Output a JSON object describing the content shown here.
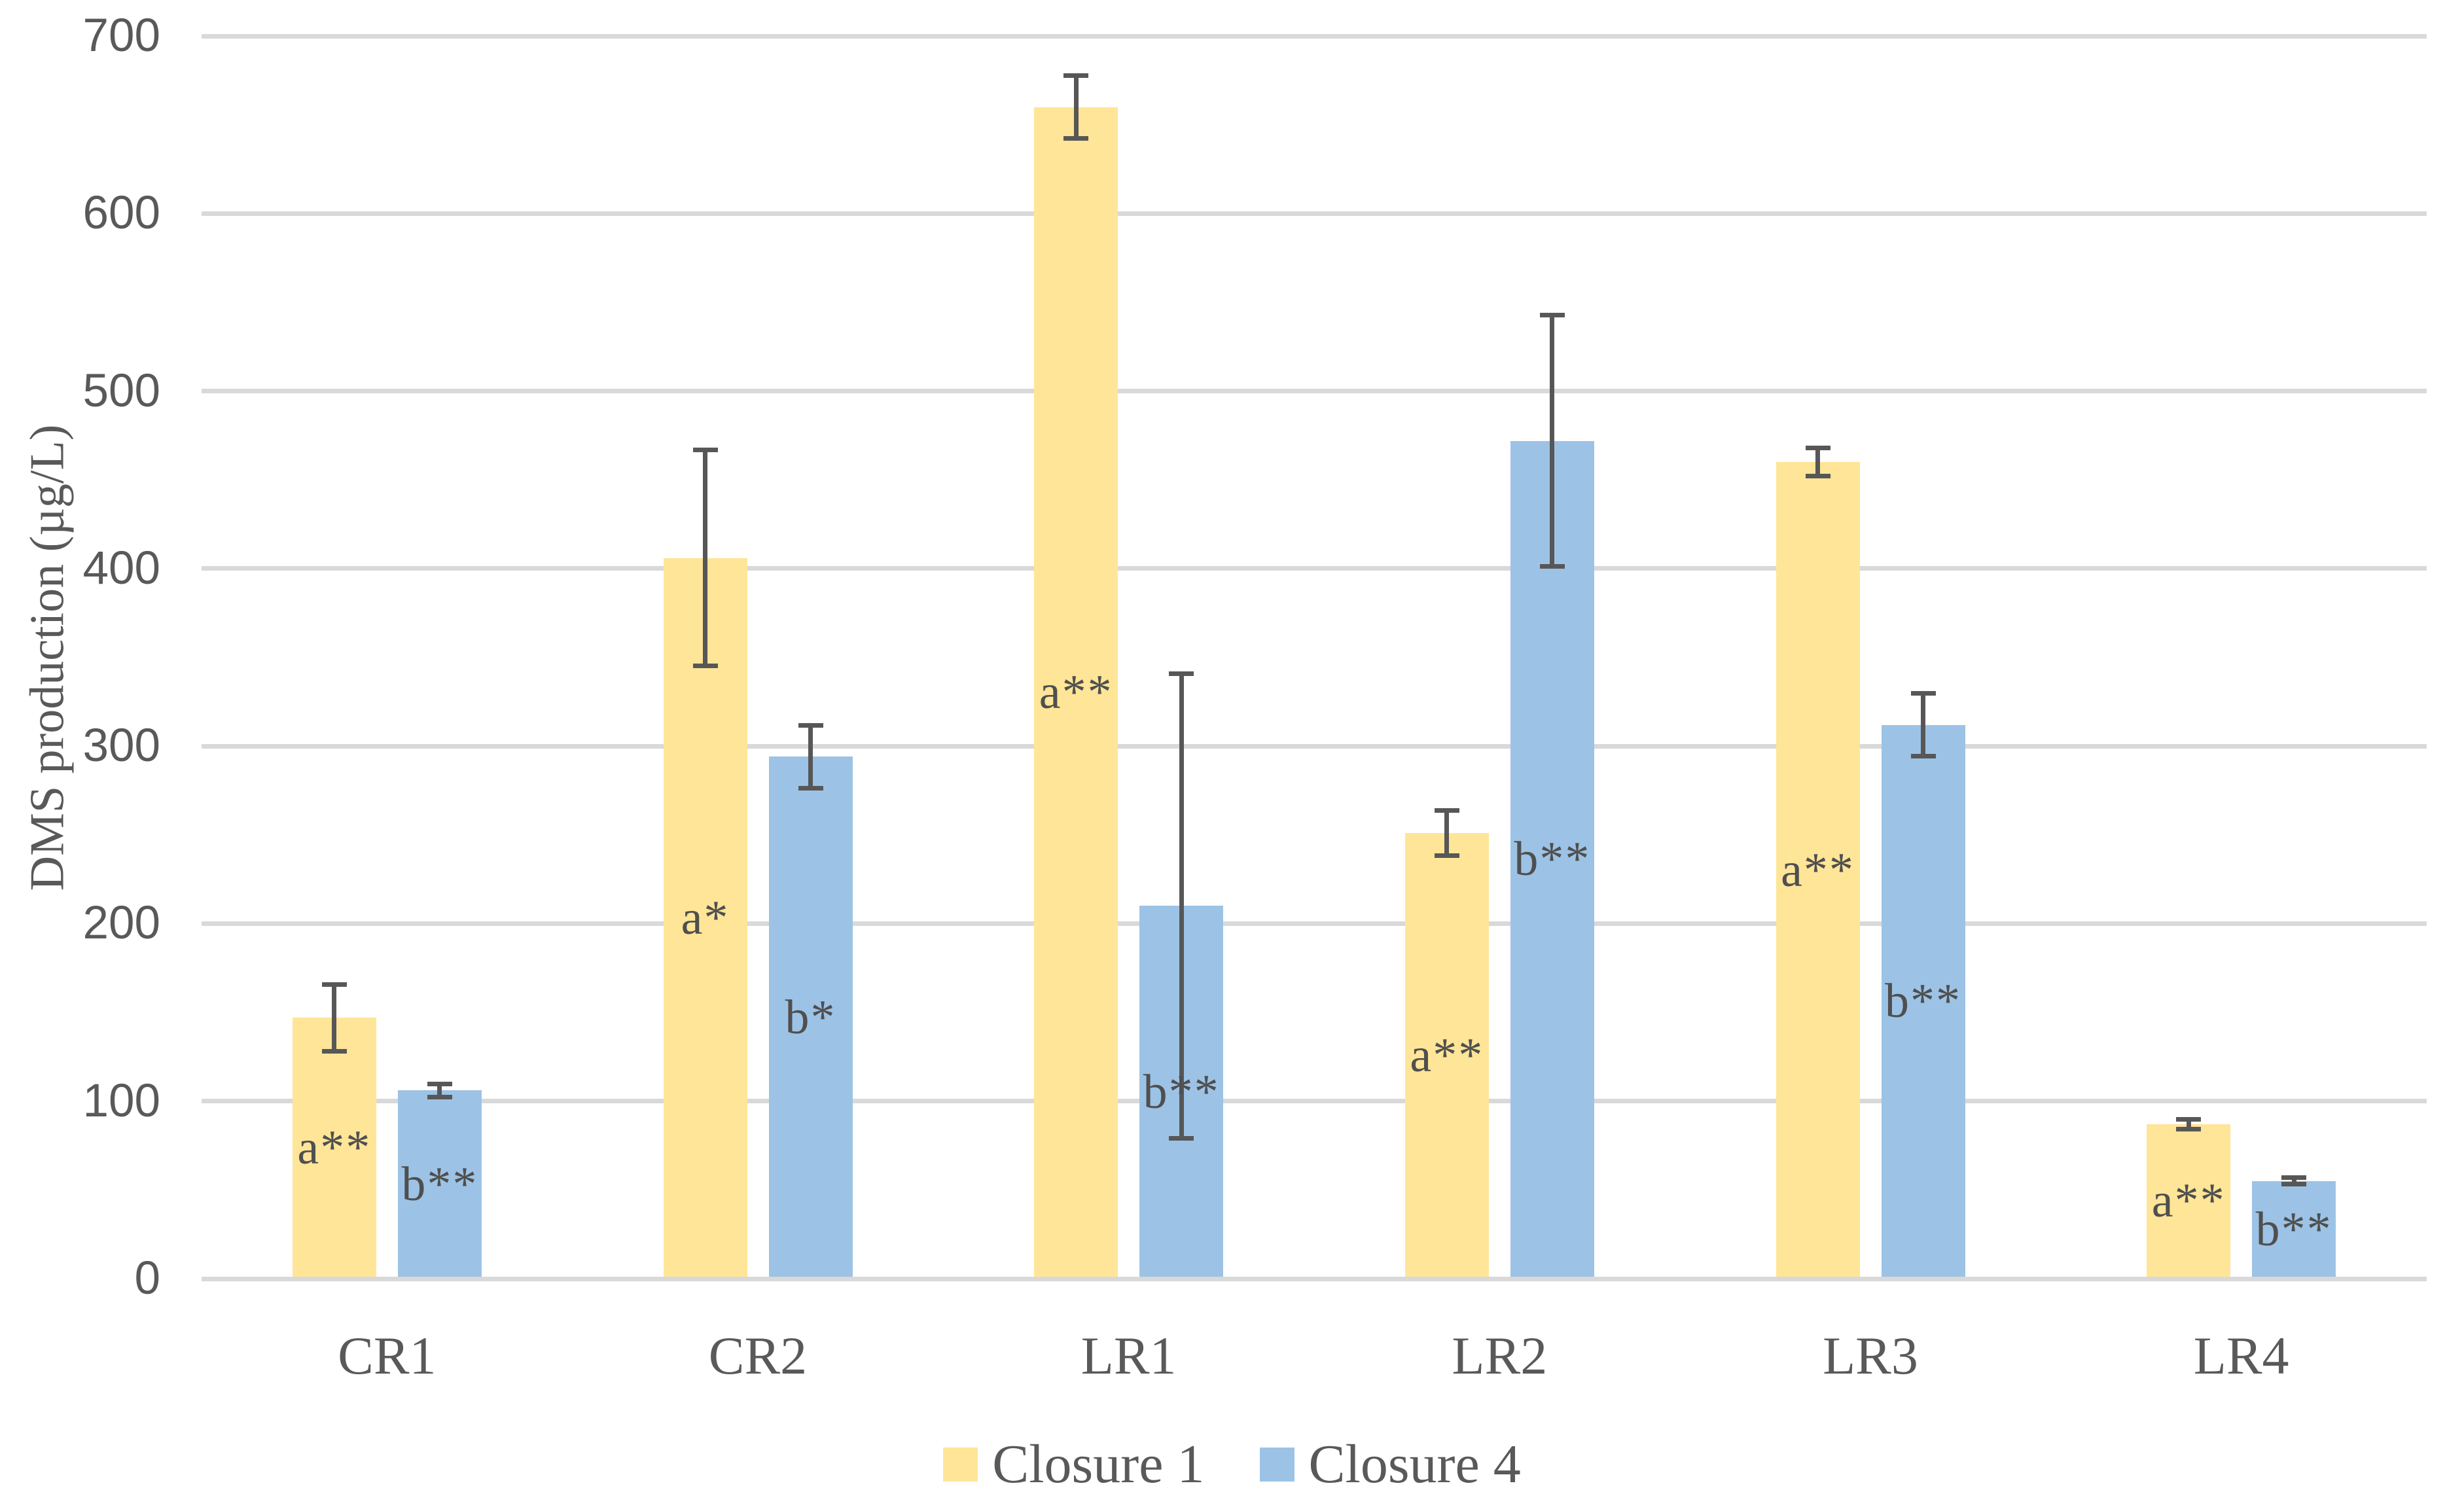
{
  "chart_data": {
    "type": "bar",
    "title": "",
    "xlabel": "",
    "ylabel": "DMS production (µg/L)",
    "ylim": [
      0,
      700
    ],
    "yticks": [
      0,
      100,
      200,
      300,
      400,
      500,
      600,
      700
    ],
    "grid": true,
    "legend_position": "bottom",
    "categories": [
      "CR1",
      "CR2",
      "LR1",
      "LR2",
      "LR3",
      "LR4"
    ],
    "series": [
      {
        "name": "Closure 1",
        "color": "#FFE597",
        "values": [
          147,
          406,
          660,
          251,
          460,
          87
        ],
        "errors": [
          19,
          61,
          18,
          13,
          8,
          3
        ],
        "annotations": [
          "a**",
          "a*",
          "a**",
          "a**",
          "a**",
          "a**"
        ]
      },
      {
        "name": "Closure 4",
        "color": "#9CC3E6",
        "values": [
          106,
          294,
          210,
          472,
          312,
          55
        ],
        "errors": [
          4,
          18,
          131,
          71,
          18,
          2
        ],
        "annotations": [
          "b**",
          "b*",
          "b**",
          "b**",
          "b**",
          "b**"
        ]
      }
    ],
    "colors": {
      "gridline": "#D9D9D9",
      "axis_line": "#D9D9D9",
      "error_bar": "#575757",
      "text": "#595959",
      "series_1": "#FFE597",
      "series_2": "#9CC3E6"
    }
  }
}
